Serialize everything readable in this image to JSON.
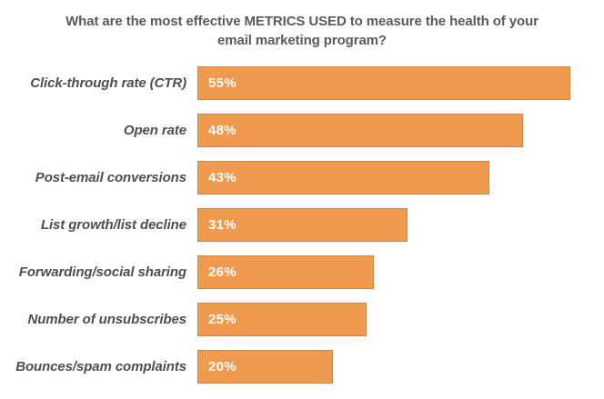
{
  "chart_data": {
    "type": "bar",
    "orientation": "horizontal",
    "title": "What are the most effective METRICS USED to measure the health of your email marketing program?",
    "categories": [
      "Click-through rate (CTR)",
      "Open rate",
      "Post-email conversions",
      "List growth/list decline",
      "Forwarding/social sharing",
      "Number of unsubscribes",
      "Bounces/spam complaints"
    ],
    "values": [
      55,
      48,
      43,
      31,
      26,
      25,
      20
    ],
    "value_labels": [
      "55%",
      "48%",
      "43%",
      "31%",
      "26%",
      "25%",
      "20%"
    ],
    "xlabel": "",
    "ylabel": "",
    "xlim": [
      0,
      60
    ],
    "grid": false,
    "legend": false,
    "value_label_position": "inside-left",
    "bar_color": "#EF9A4F",
    "bar_border_color": "#C9873F",
    "value_label_color": "#FFFFFF",
    "category_label_color": "#4C4E56",
    "title_color": "#595A5C",
    "background_color": "#FFFFFF"
  }
}
